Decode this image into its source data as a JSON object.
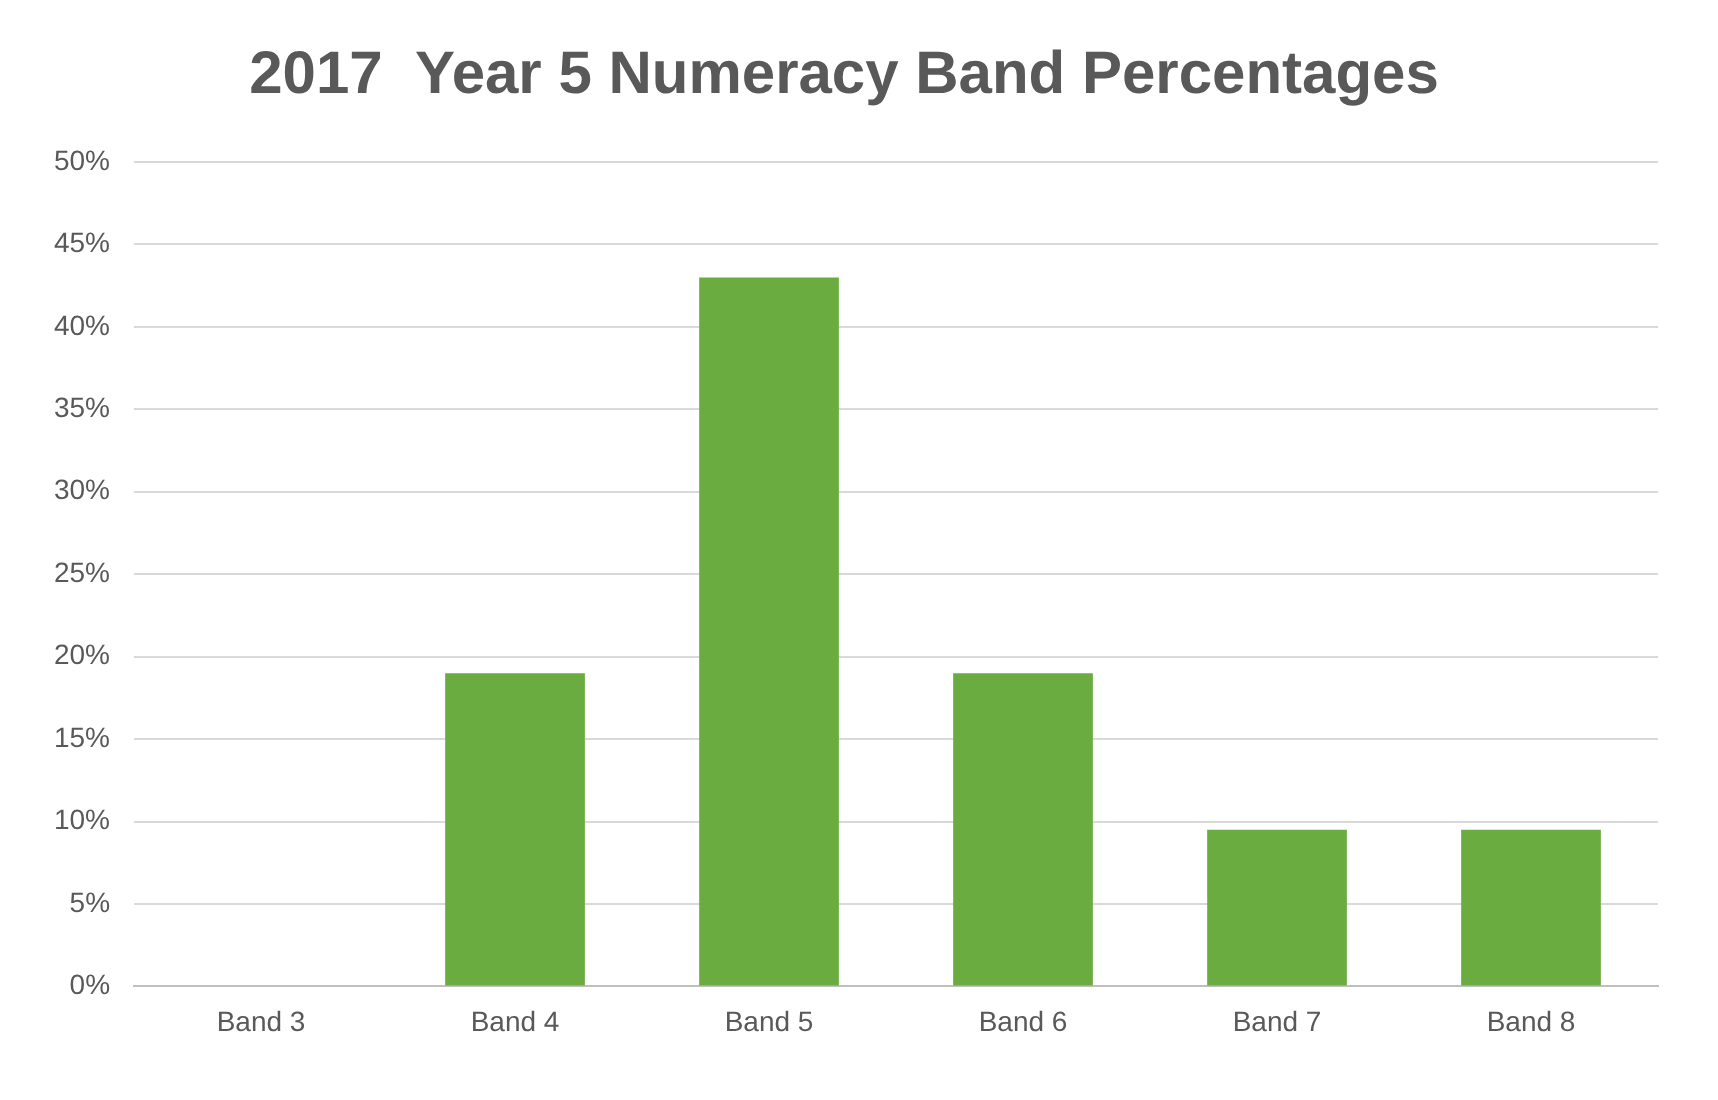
{
  "chart_data": {
    "type": "bar",
    "title": "2017  Year 5 Numeracy Band Percentages",
    "categories": [
      "Band 3",
      "Band 4",
      "Band 5",
      "Band 6",
      "Band 7",
      "Band 8"
    ],
    "values": [
      0,
      19,
      43,
      19,
      9.5,
      9.5
    ],
    "color": "#6aac3f",
    "ylim": [
      0,
      50
    ],
    "yticks": [
      {
        "value": 0,
        "label": "0%"
      },
      {
        "value": 5,
        "label": "5%"
      },
      {
        "value": 10,
        "label": "10%"
      },
      {
        "value": 15,
        "label": "15%"
      },
      {
        "value": 20,
        "label": "20%"
      },
      {
        "value": 25,
        "label": "25%"
      },
      {
        "value": 30,
        "label": "30%"
      },
      {
        "value": 35,
        "label": "35%"
      },
      {
        "value": 40,
        "label": "40%"
      },
      {
        "value": 45,
        "label": "45%"
      },
      {
        "value": 50,
        "label": "50%"
      }
    ],
    "grid": "y",
    "legend": false
  }
}
